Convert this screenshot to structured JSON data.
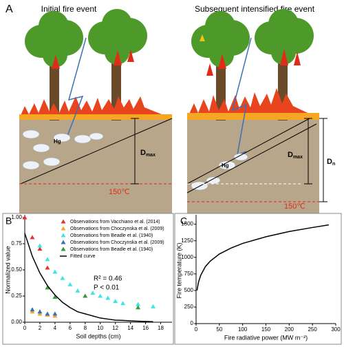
{
  "panel_a": {
    "label": "A",
    "left_title": "Initial fire event",
    "right_title": "Subsequent intensified fire event",
    "left": {
      "hg": "Hg",
      "d": "D",
      "d_sub": "max",
      "temp": "150℃"
    },
    "right": {
      "hg": "Hg",
      "d": "D",
      "d_sub": "max",
      "dn": "D",
      "dn_sub": "n",
      "temp": "150℃"
    }
  },
  "chart_data": [
    {
      "type": "scatter",
      "panel_label": "B",
      "x_label": "Soil depths (cm)",
      "y_label": "Normalized value",
      "xlim": [
        0,
        19.5
      ],
      "ylim": [
        0,
        1
      ],
      "xticks": [
        0,
        2,
        4,
        6,
        8,
        10,
        12,
        14,
        16,
        18
      ],
      "yticks": [
        {
          "value": 0,
          "label": "0.00"
        },
        {
          "value": 0.25,
          "label": "0.25"
        },
        {
          "value": 0.5,
          "label": "0.50"
        },
        {
          "value": 0.75,
          "label": "0.75"
        },
        {
          "value": 1,
          "label": "1.00"
        }
      ],
      "annotations": [
        "R² = 0.46",
        "P < 0.01"
      ],
      "series": [
        {
          "name": "Observations from Vacchiano et al. (2014)",
          "color": "#e8312f",
          "marker": "triangle",
          "x": [
            0,
            1,
            2,
            3
          ],
          "values": [
            1.0,
            0.81,
            0.7,
            0.52
          ]
        },
        {
          "name": "Observations from Choczynska et al. (2009)",
          "color": "#f5a623",
          "marker": "triangle",
          "x": [
            1,
            2,
            3,
            4
          ],
          "values": [
            0.1,
            0.08,
            0.07,
            0.06
          ]
        },
        {
          "name": "Observations from Beadle et al. (1940)",
          "color": "#40e3e6",
          "marker": "triangle",
          "x": [
            2,
            3,
            4,
            5,
            6,
            7,
            8,
            9,
            10,
            11,
            12,
            13,
            15,
            17
          ],
          "values": [
            0.73,
            0.6,
            0.48,
            0.42,
            0.36,
            0.3,
            0.25,
            0.28,
            0.25,
            0.23,
            0.2,
            0.18,
            0.17,
            0.15
          ]
        },
        {
          "name": "Observations from Choczynska et al. (2009)",
          "color": "#3b6fb6",
          "marker": "triangle",
          "x": [
            1,
            2,
            3,
            4
          ],
          "values": [
            0.12,
            0.1,
            0.08,
            0.08
          ]
        },
        {
          "name": "Observations from Beadle et al. (1940)",
          "color": "#3a9a3a",
          "marker": "triangle",
          "x": [
            3,
            4,
            8,
            15
          ],
          "values": [
            0.33,
            0.24,
            0.25,
            0.14
          ]
        },
        {
          "name": "Fitted curve",
          "color": "#000000",
          "marker": "line",
          "x": [
            0,
            1,
            2,
            3,
            4,
            5,
            6,
            7,
            8,
            9,
            10,
            11,
            12,
            13,
            14,
            15,
            16,
            17
          ],
          "values": [
            0.85,
            0.63,
            0.47,
            0.35,
            0.26,
            0.19,
            0.14,
            0.1,
            0.08,
            0.06,
            0.04,
            0.03,
            0.02,
            0.017,
            0.013,
            0.01,
            0.007,
            0.005
          ]
        }
      ]
    },
    {
      "type": "line",
      "panel_label": "C",
      "x_label": "Fire radiative power  (MW m⁻²)",
      "y_label": "Fire temperature (K)",
      "xlim": [
        0,
        300
      ],
      "ylim": [
        0,
        1600
      ],
      "xticks": [
        0,
        50,
        100,
        150,
        200,
        250,
        300
      ],
      "yticks": [
        0,
        250,
        500,
        750,
        1000,
        1250,
        1500
      ],
      "series": [
        {
          "color": "#000000",
          "x": [
            2,
            5,
            10,
            20,
            30,
            50,
            75,
            100,
            150,
            200,
            250,
            285
          ],
          "values": [
            500,
            620,
            730,
            860,
            940,
            1050,
            1140,
            1210,
            1310,
            1390,
            1450,
            1490
          ]
        }
      ]
    }
  ]
}
